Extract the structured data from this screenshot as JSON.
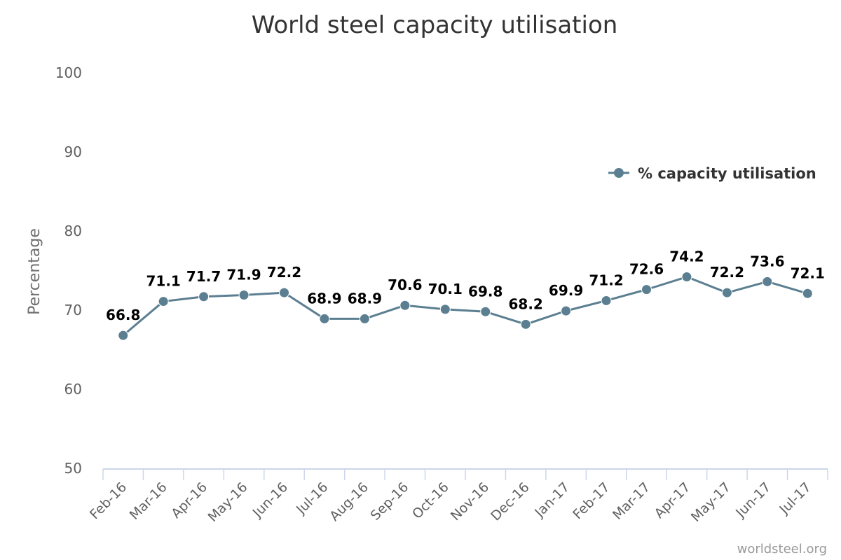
{
  "chart_data": {
    "type": "line",
    "title": "World steel capacity utilisation",
    "ylabel": "Percentage",
    "xlabel": "",
    "ylim": [
      50,
      100
    ],
    "yticks": [
      50,
      60,
      70,
      80,
      90,
      100
    ],
    "categories": [
      "Feb-16",
      "Mar-16",
      "Apr-16",
      "May-16",
      "Jun-16",
      "Jul-16",
      "Aug-16",
      "Sep-16",
      "Oct-16",
      "Nov-16",
      "Dec-16",
      "Jan-17",
      "Feb-17",
      "Mar-17",
      "Apr-17",
      "May-17",
      "Jun-17",
      "Jul-17"
    ],
    "series": [
      {
        "name": "% capacity utilisation",
        "color": "#5b7f91",
        "values": [
          66.8,
          71.1,
          71.7,
          71.9,
          72.2,
          68.9,
          68.9,
          70.6,
          70.1,
          69.8,
          68.2,
          69.9,
          71.2,
          72.6,
          74.2,
          72.2,
          73.6,
          72.1
        ]
      }
    ],
    "legend_position": "top-right",
    "grid": false,
    "credit": "worldsteel.org"
  }
}
